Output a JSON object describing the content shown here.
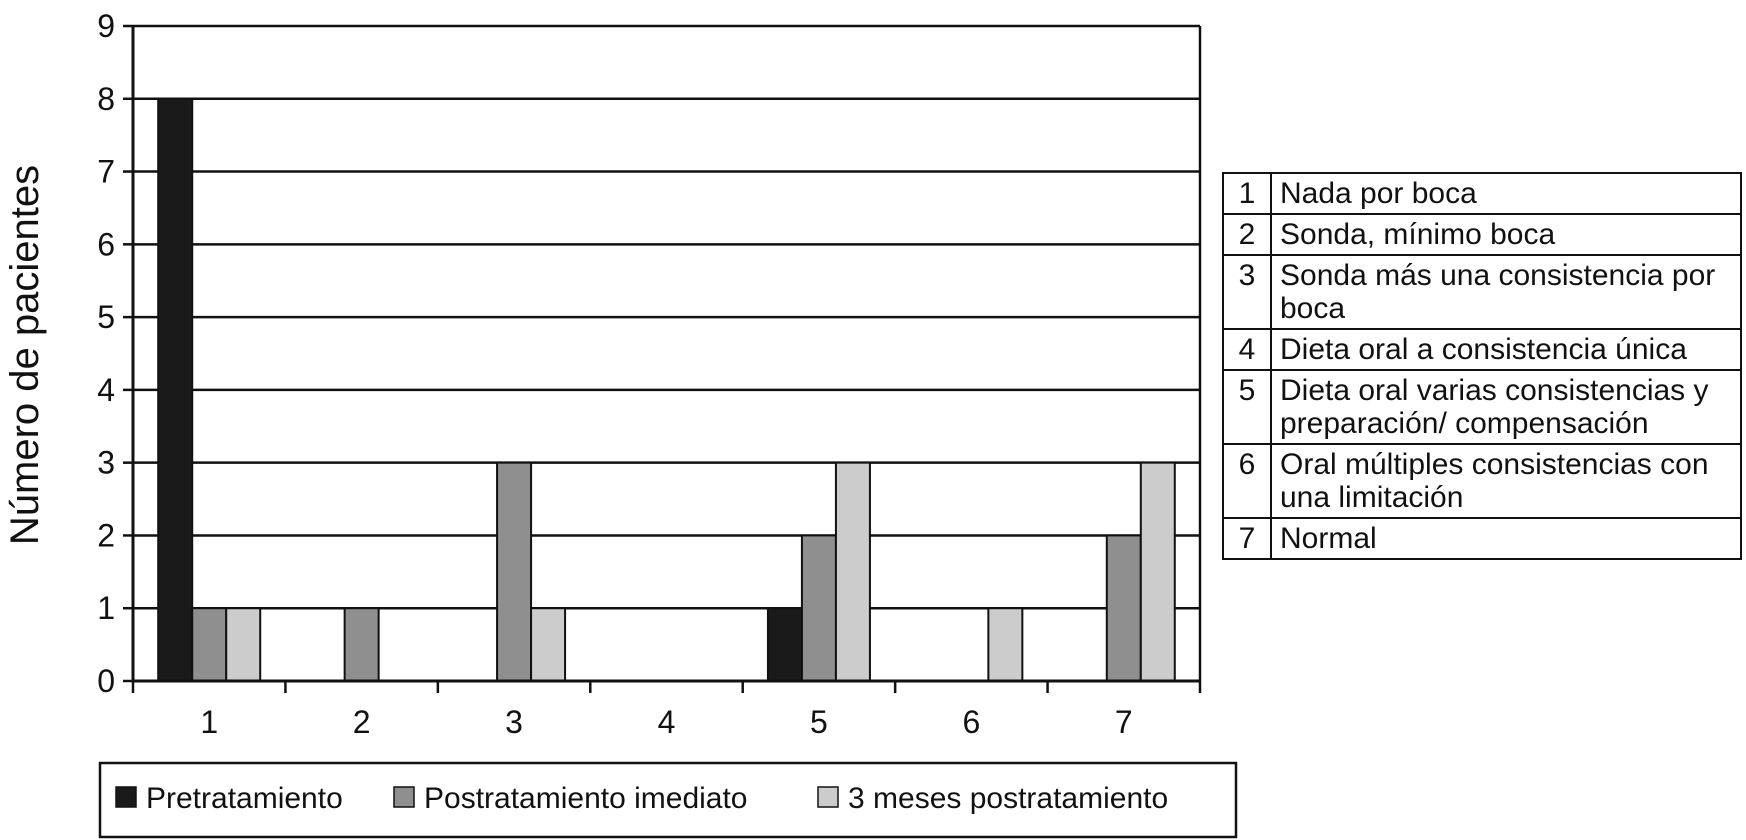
{
  "chart_data": {
    "type": "bar",
    "ylabel": "Número de pacientes",
    "xlabel": "",
    "ylim": [
      0,
      9
    ],
    "yticks": [
      "0",
      "1",
      "2",
      "3",
      "4",
      "5",
      "6",
      "7",
      "8",
      "9"
    ],
    "categories": [
      "1",
      "2",
      "3",
      "4",
      "5",
      "6",
      "7"
    ],
    "grid": true,
    "legend_position": "bottom",
    "series": [
      {
        "name": "Pretratamiento",
        "color": "#1a1a1a",
        "values": [
          8,
          0,
          0,
          0,
          1,
          0,
          0
        ]
      },
      {
        "name": "Postratamiento imediato",
        "color": "#8f8f8f",
        "values": [
          1,
          1,
          3,
          0,
          2,
          0,
          2
        ]
      },
      {
        "name": "3 meses postratamiento",
        "color": "#cccccc",
        "values": [
          1,
          0,
          1,
          0,
          3,
          1,
          3
        ]
      }
    ],
    "key_table": [
      {
        "num": "1",
        "label": "Nada por boca"
      },
      {
        "num": "2",
        "label": "Sonda, mínimo boca"
      },
      {
        "num": "3",
        "label": "Sonda más una consistencia por boca"
      },
      {
        "num": "4",
        "label": "Dieta oral a consistencia única"
      },
      {
        "num": "5",
        "label": "Dieta oral varias consistencias y preparación/ compensación"
      },
      {
        "num": "6",
        "label": "Oral múltiples consistencias con una limitación"
      },
      {
        "num": "7",
        "label": "Normal"
      }
    ]
  }
}
